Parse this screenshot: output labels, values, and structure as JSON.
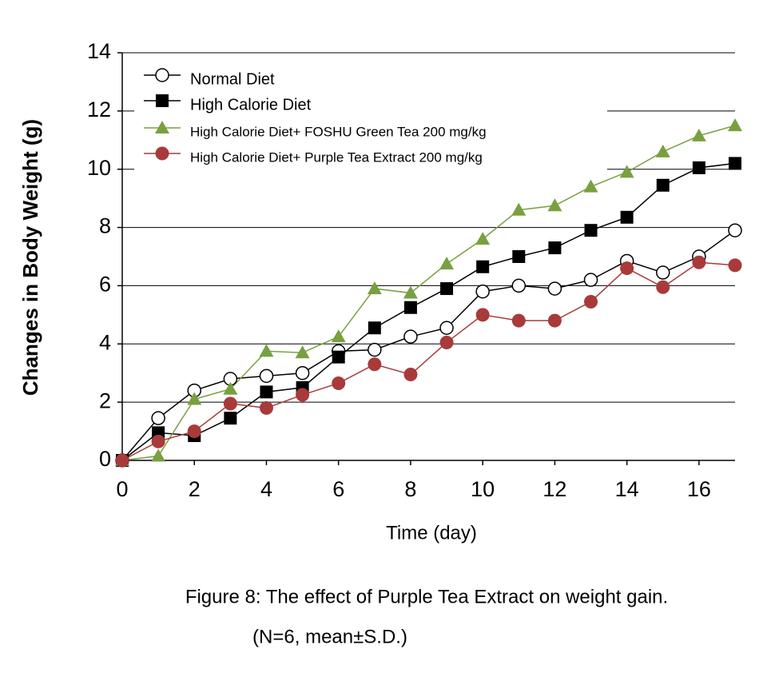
{
  "chart_data": {
    "type": "line",
    "y_label": "Changes in Body Weight (g)",
    "x_label": "Time (day)",
    "caption": "Figure 8: The effect of Purple Tea Extract on weight gain.",
    "caption_note": "(N=6, mean±S.D.)",
    "x": [
      0,
      1,
      2,
      3,
      4,
      5,
      6,
      7,
      8,
      9,
      10,
      11,
      12,
      13,
      14,
      15,
      16,
      17
    ],
    "xlim": [
      0,
      17
    ],
    "xticks": [
      0,
      2,
      4,
      6,
      8,
      10,
      12,
      14,
      16
    ],
    "ylim": [
      0,
      14
    ],
    "yticks": [
      0,
      2,
      4,
      6,
      8,
      10,
      12,
      14
    ],
    "grid": true,
    "legend": "upper left",
    "series": [
      {
        "name": "Normal Diet",
        "color": "#000000",
        "marker": "open-circle",
        "values": [
          0,
          1.45,
          2.4,
          2.8,
          2.9,
          3.0,
          3.75,
          3.8,
          4.25,
          4.55,
          5.8,
          6.0,
          5.9,
          6.2,
          6.85,
          6.45,
          7.0,
          7.9
        ]
      },
      {
        "name": "High Calorie Diet",
        "color": "#000000",
        "marker": "square",
        "values": [
          0,
          0.95,
          0.85,
          1.45,
          2.35,
          2.5,
          3.55,
          4.55,
          5.25,
          5.9,
          6.65,
          7.0,
          7.3,
          7.9,
          8.35,
          9.45,
          10.05,
          10.2
        ]
      },
      {
        "name": "High Calorie Diet+ FOSHU Green Tea 200 mg/kg",
        "color": "#78a040",
        "marker": "triangle",
        "values": [
          0,
          0.15,
          2.1,
          2.45,
          3.75,
          3.7,
          4.25,
          5.9,
          5.75,
          6.75,
          7.6,
          8.6,
          8.75,
          9.4,
          9.9,
          10.6,
          11.15,
          11.5
        ]
      },
      {
        "name": "High Calorie Diet+ Purple Tea Extract 200 mg/kg",
        "color": "#a83a3a",
        "marker": "circle",
        "values": [
          0,
          0.65,
          1.0,
          1.95,
          1.8,
          2.25,
          2.65,
          3.3,
          2.95,
          4.05,
          5.0,
          4.8,
          4.8,
          5.45,
          6.6,
          5.95,
          6.8,
          6.7
        ]
      }
    ]
  }
}
